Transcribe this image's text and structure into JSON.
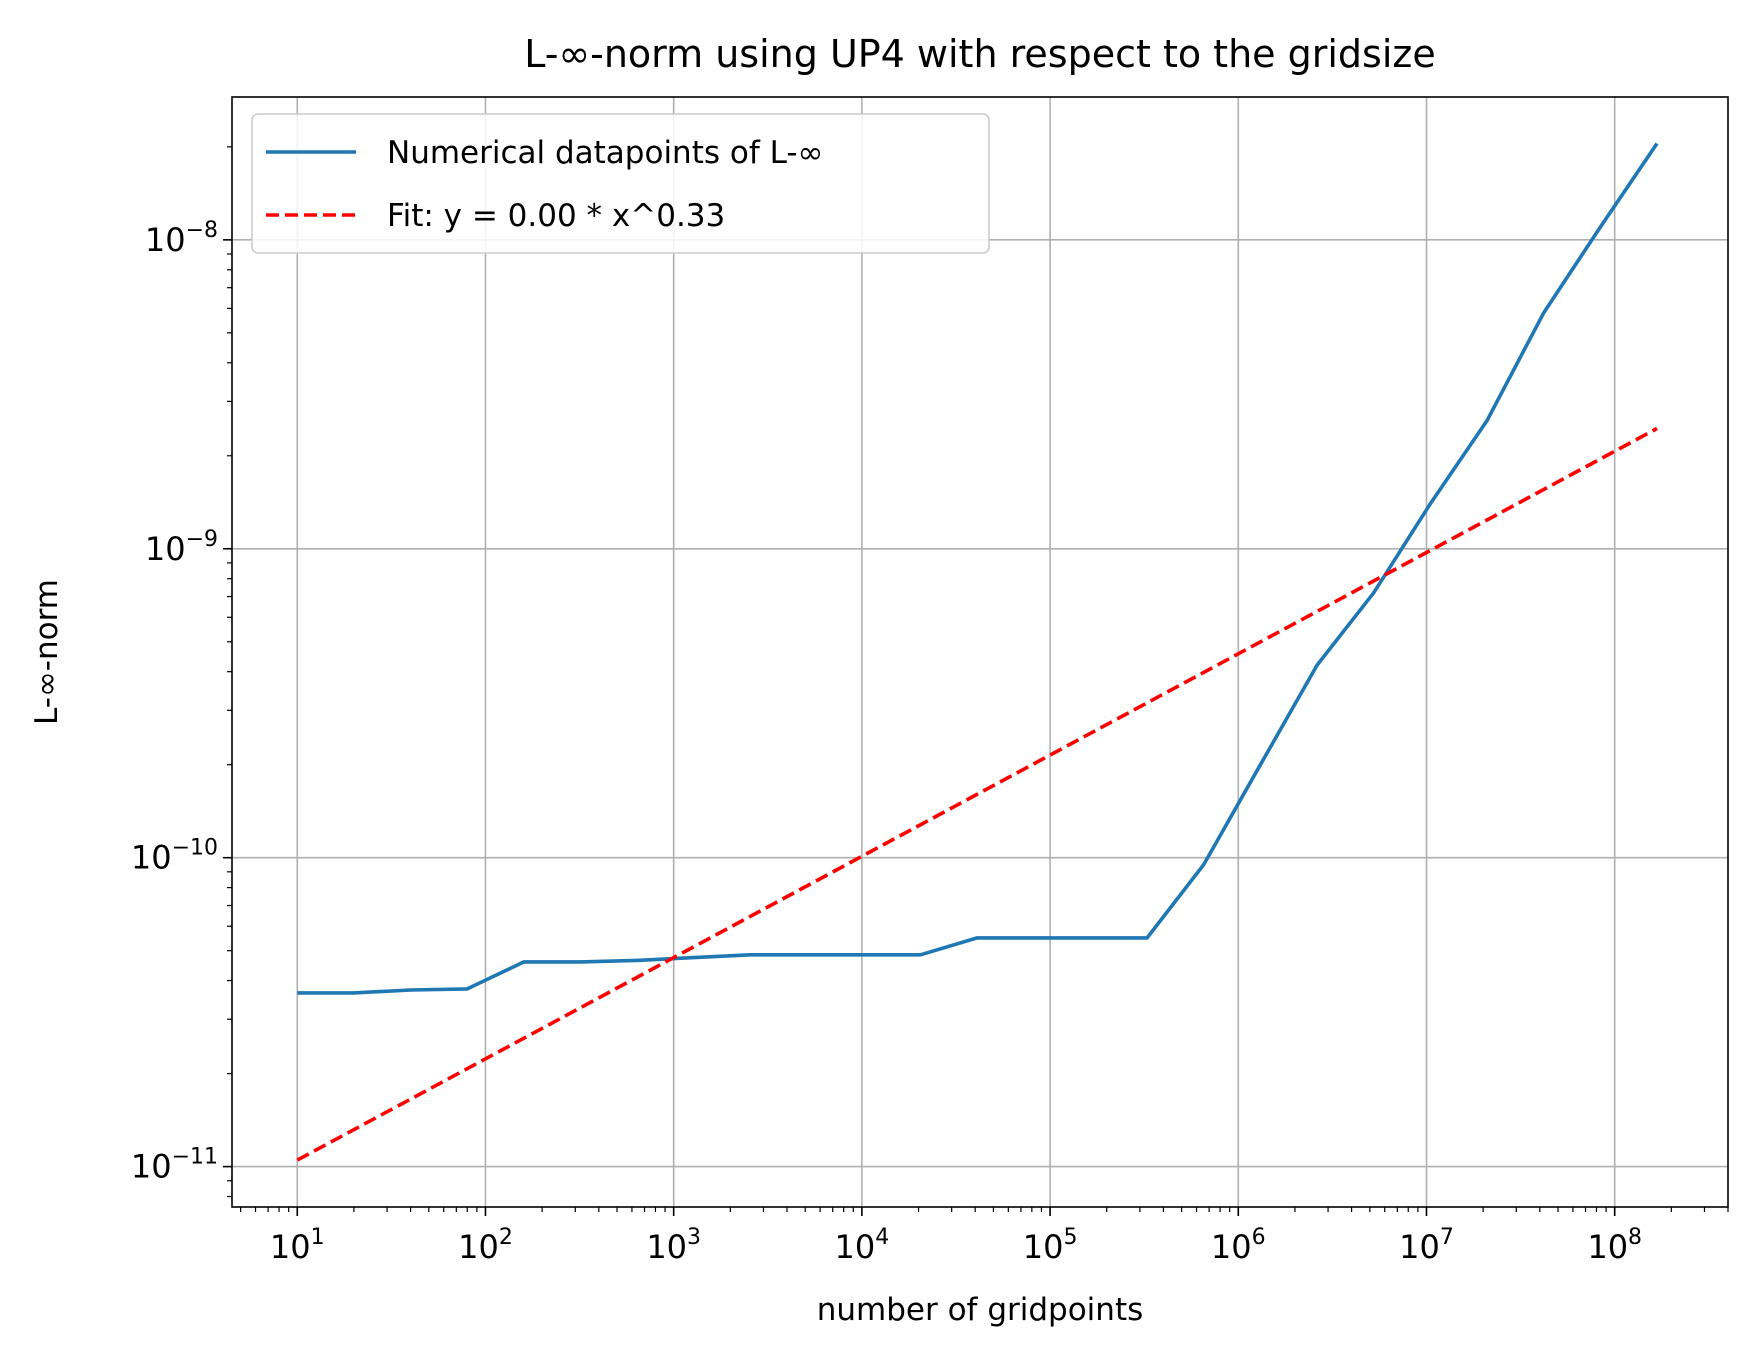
{
  "chart_data": {
    "type": "line",
    "title": "L-∞-norm using UP4 with respect to the gridsize",
    "xlabel": "number of gridpoints",
    "ylabel": "L-∞-norm",
    "xscale": "log",
    "yscale": "log",
    "xlim": [
      4.5,
      400000000
    ],
    "ylim": [
      7.4e-12,
      2.9e-08
    ],
    "grid": true,
    "legend_position": "upper-left",
    "x_ticks": [
      {
        "value": 10,
        "base": "10",
        "exp": "1"
      },
      {
        "value": 100,
        "base": "10",
        "exp": "2"
      },
      {
        "value": 1000,
        "base": "10",
        "exp": "3"
      },
      {
        "value": 10000,
        "base": "10",
        "exp": "4"
      },
      {
        "value": 100000,
        "base": "10",
        "exp": "5"
      },
      {
        "value": 1000000,
        "base": "10",
        "exp": "6"
      },
      {
        "value": 10000000,
        "base": "10",
        "exp": "7"
      },
      {
        "value": 100000000,
        "base": "10",
        "exp": "8"
      }
    ],
    "y_ticks": [
      {
        "value": 1e-11,
        "base": "10",
        "exp": "−11"
      },
      {
        "value": 1e-10,
        "base": "10",
        "exp": "−10"
      },
      {
        "value": 1e-09,
        "base": "10",
        "exp": "−9"
      },
      {
        "value": 1e-08,
        "base": "10",
        "exp": "−8"
      }
    ],
    "series": [
      {
        "name": "Numerical datapoints of L-∞",
        "color": "#1f77b4",
        "style": "solid",
        "x": [
          10,
          20,
          40,
          80,
          160,
          320,
          640,
          1280,
          2560,
          5120,
          10240,
          20480,
          40960,
          81920,
          163840,
          327680,
          655360,
          1310720,
          2621440,
          5242880,
          10485760,
          20971520,
          41943040,
          83886080,
          167772160
        ],
        "y": [
          3.65e-11,
          3.65e-11,
          3.73e-11,
          3.76e-11,
          4.6e-11,
          4.6e-11,
          4.65e-11,
          4.75e-11,
          4.85e-11,
          4.85e-11,
          4.85e-11,
          4.85e-11,
          5.5e-11,
          5.5e-11,
          5.5e-11,
          5.5e-11,
          9.5e-11,
          2e-10,
          4.2e-10,
          7.2e-10,
          1.4e-09,
          2.6e-09,
          5.8e-09,
          1.1e-08,
          2.05e-08
        ]
      },
      {
        "name": "Fit: y = 0.00 * x^0.33",
        "color": "#ff0000",
        "style": "dashed",
        "x": [
          10,
          167772160
        ],
        "y": [
          1.05e-11,
          2.45e-09
        ]
      }
    ]
  }
}
